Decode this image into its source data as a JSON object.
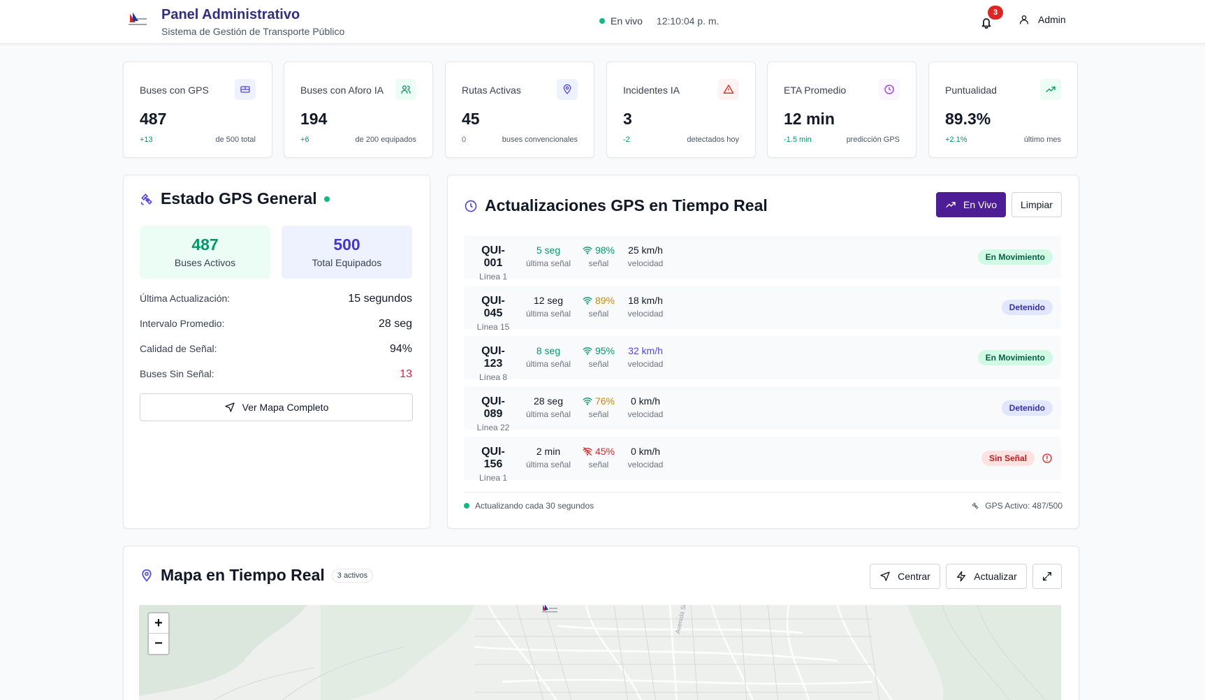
{
  "header": {
    "title": "Panel Administrativo",
    "subtitle": "Sistema de Gestión de Transporte Público",
    "live_label": "En vivo",
    "time": "12:10:04 p. m.",
    "notifications": "3",
    "user": "Admin"
  },
  "stats": [
    {
      "label": "Buses con GPS",
      "value": "487",
      "delta": "+13",
      "note": "de 500 total",
      "icon": "bus-icon",
      "color": "#4f46e5"
    },
    {
      "label": "Buses con Aforo IA",
      "value": "194",
      "delta": "+6",
      "note": "de 200 equipados",
      "icon": "users-icon",
      "color": "#059669"
    },
    {
      "label": "Rutas Activas",
      "value": "45",
      "delta": "0",
      "note": "buses convencionales",
      "icon": "map-pin-icon",
      "color": "#4f46e5"
    },
    {
      "label": "Incidentes IA",
      "value": "3",
      "delta": "-2",
      "note": "detectados hoy",
      "icon": "alert-triangle-icon",
      "color": "#dc2626"
    },
    {
      "label": "ETA Promedio",
      "value": "12 min",
      "delta": "-1.5 min",
      "note": "predicción GPS",
      "icon": "clock-icon",
      "color": "#9333ea"
    },
    {
      "label": "Puntualidad",
      "value": "89.3%",
      "delta": "+2.1%",
      "note": "último mes",
      "icon": "trending-up-icon",
      "color": "#059669"
    }
  ],
  "gps_status": {
    "title": "Estado GPS General",
    "active_value": "487",
    "active_label": "Buses Activos",
    "total_value": "500",
    "total_label": "Total Equipados",
    "rows": [
      {
        "label": "Última Actualización:",
        "value": "15 segundos"
      },
      {
        "label": "Intervalo Promedio:",
        "value": "28 seg"
      },
      {
        "label": "Calidad de Señal:",
        "value": "94%"
      },
      {
        "label": "Buses Sin Señal:",
        "value": "13"
      }
    ],
    "map_button": "Ver Mapa Completo"
  },
  "updates": {
    "title": "Actualizaciones GPS en Tiempo Real",
    "live_button": "En Vivo",
    "clear_button": "Limpiar",
    "col_last": "última señal",
    "col_signal": "señal",
    "col_speed": "velocidad",
    "buses": [
      {
        "id": "QUI-001",
        "line": "Línea 1",
        "last": "5 seg",
        "signal": "98%",
        "speed": "25 km/h",
        "status": "En Movimiento"
      },
      {
        "id": "QUI-045",
        "line": "Línea 15",
        "last": "12 seg",
        "signal": "89%",
        "speed": "18 km/h",
        "status": "Detenido"
      },
      {
        "id": "QUI-123",
        "line": "Línea 8",
        "last": "8 seg",
        "signal": "95%",
        "speed": "32 km/h",
        "status": "En Movimiento"
      },
      {
        "id": "QUI-089",
        "line": "Línea 22",
        "last": "28 seg",
        "signal": "76%",
        "speed": "0 km/h",
        "status": "Detenido"
      },
      {
        "id": "QUI-156",
        "line": "Línea 1",
        "last": "2 min",
        "signal": "45%",
        "speed": "0 km/h",
        "status": "Sin Señal"
      }
    ],
    "footer_left": "Actualizando cada 30 segundos",
    "footer_right": "GPS Activo: 487/500"
  },
  "map": {
    "title": "Mapa en Tiempo Real",
    "badge": "3 activos",
    "center_button": "Centrar",
    "refresh_button": "Actualizar",
    "zoom_in": "+",
    "zoom_out": "−",
    "street_label": "Avenida Simón Bolívar"
  }
}
